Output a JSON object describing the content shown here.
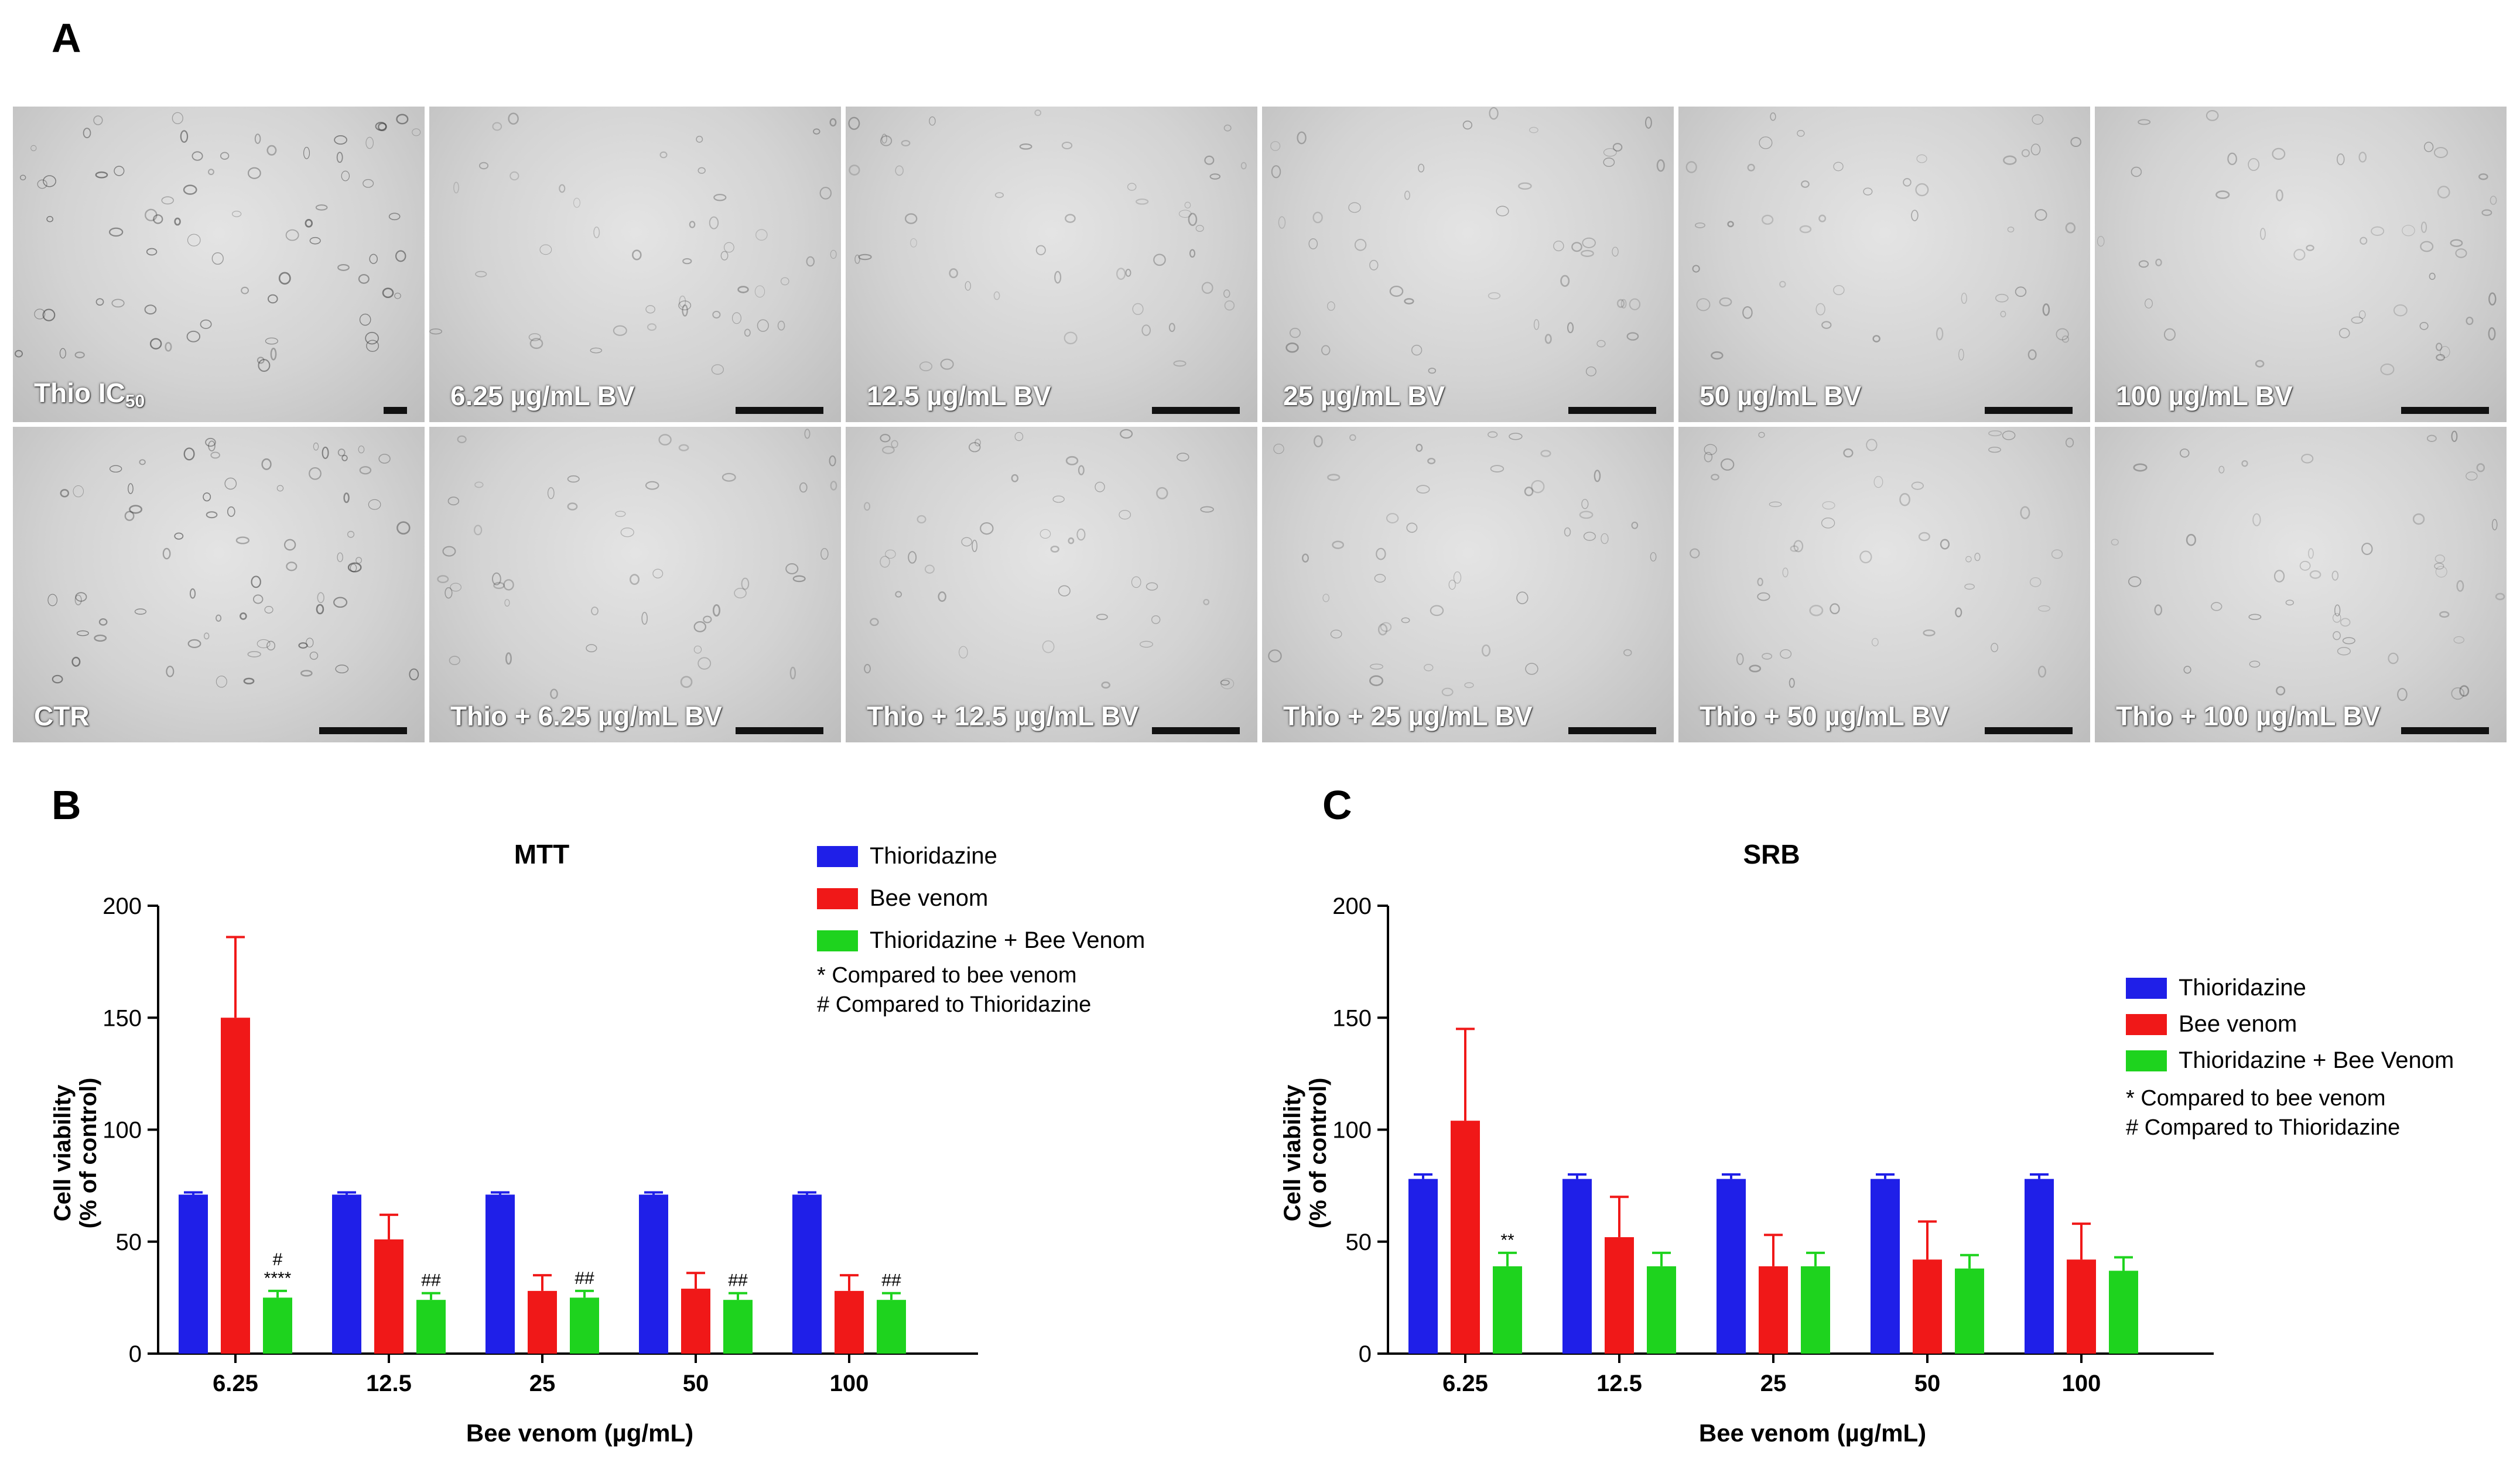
{
  "panels": {
    "A": "A",
    "B": "B",
    "C": "C"
  },
  "micrographs": [
    {
      "label": "Thio IC",
      "subscript": "50"
    },
    {
      "label": "6.25 µg/mL BV"
    },
    {
      "label": "12.5 µg/mL BV"
    },
    {
      "label": "25 µg/mL BV"
    },
    {
      "label": "50 µg/mL BV"
    },
    {
      "label": "100 µg/mL BV"
    },
    {
      "label": "CTR"
    },
    {
      "label": "Thio + 6.25 µg/mL BV"
    },
    {
      "label": "Thio + 12.5 µg/mL BV"
    },
    {
      "label": "Thio + 25 µg/mL BV"
    },
    {
      "label": "Thio + 50 µg/mL BV"
    },
    {
      "label": "Thio + 100 µg/mL BV"
    }
  ],
  "colors": {
    "thioridazine": "#1f1fe8",
    "bee_venom": "#f01818",
    "combination": "#1ed31e"
  },
  "chart_data": [
    {
      "type": "bar",
      "title": "MTT",
      "xlabel": "Bee venom (µg/mL)",
      "ylabel": [
        "Cell viability",
        "(% of control)"
      ],
      "ylim": [
        0,
        200
      ],
      "yticks": [
        0,
        50,
        100,
        150,
        200
      ],
      "categories": [
        "6.25",
        "12.5",
        "25",
        "50",
        "100"
      ],
      "series": [
        {
          "name": "Thioridazine",
          "values": [
            71,
            71,
            71,
            71,
            71
          ],
          "errors": [
            1,
            1,
            1,
            1,
            1
          ]
        },
        {
          "name": "Bee venom",
          "values": [
            150,
            51,
            28,
            29,
            28
          ],
          "errors": [
            36,
            11,
            7,
            7,
            7
          ]
        },
        {
          "name": "Thioridazine + Bee Venom",
          "values": [
            25,
            24,
            25,
            24,
            24
          ],
          "errors": [
            3,
            3,
            3,
            3,
            3
          ]
        }
      ],
      "annotations": [
        {
          "category": "6.25",
          "series": "Thioridazine + Bee Venom",
          "lines": [
            "#",
            "****"
          ]
        },
        {
          "category": "12.5",
          "series": "Thioridazine + Bee Venom",
          "lines": [
            "##"
          ]
        },
        {
          "category": "25",
          "series": "Thioridazine + Bee Venom",
          "lines": [
            "##"
          ]
        },
        {
          "category": "50",
          "series": "Thioridazine + Bee Venom",
          "lines": [
            "##"
          ]
        },
        {
          "category": "100",
          "series": "Thioridazine + Bee Venom",
          "lines": [
            "##"
          ]
        }
      ],
      "notes": [
        "* Compared to bee venom",
        "# Compared to Thioridazine"
      ],
      "legend": "top-right"
    },
    {
      "type": "bar",
      "title": "SRB",
      "xlabel": "Bee venom (µg/mL)",
      "ylabel": [
        "Cell viability",
        "(% of control)"
      ],
      "ylim": [
        0,
        200
      ],
      "yticks": [
        0,
        50,
        100,
        150,
        200
      ],
      "categories": [
        "6.25",
        "12.5",
        "25",
        "50",
        "100"
      ],
      "series": [
        {
          "name": "Thioridazine",
          "values": [
            78,
            78,
            78,
            78,
            78
          ],
          "errors": [
            2,
            2,
            2,
            2,
            2
          ]
        },
        {
          "name": "Bee venom",
          "values": [
            104,
            52,
            39,
            42,
            42
          ],
          "errors": [
            41,
            18,
            14,
            17,
            16
          ]
        },
        {
          "name": "Thioridazine + Bee Venom",
          "values": [
            39,
            39,
            39,
            38,
            37
          ],
          "errors": [
            6,
            6,
            6,
            6,
            6
          ]
        }
      ],
      "annotations": [
        {
          "category": "6.25",
          "series": "Thioridazine + Bee Venom",
          "lines": [
            "**"
          ]
        }
      ],
      "notes": [
        "* Compared to bee venom",
        "# Compared to Thioridazine"
      ],
      "legend": "right"
    }
  ]
}
